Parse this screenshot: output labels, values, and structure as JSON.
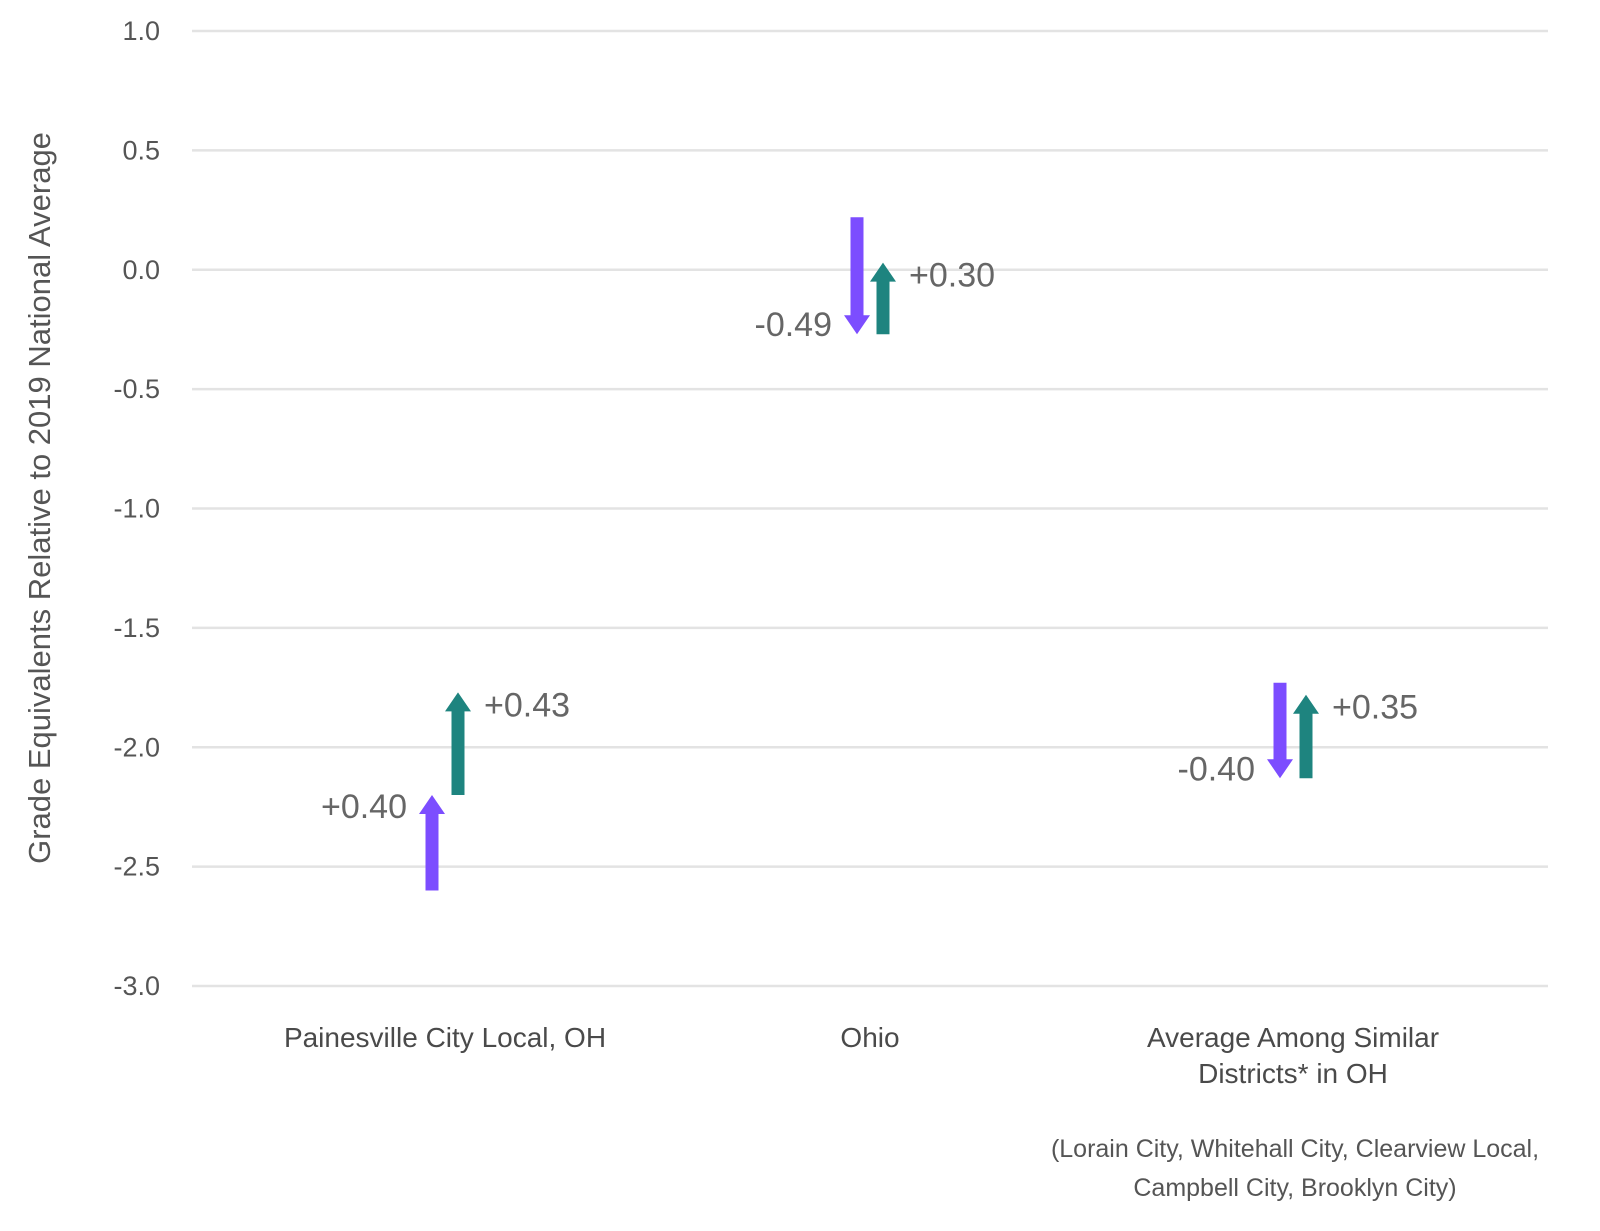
{
  "chart_data": {
    "type": "arrow",
    "ylabel": "Grade Equivalents Relative to 2019 National Average",
    "xlabel": "",
    "ylim": [
      -3.0,
      1.0
    ],
    "yticks": [
      "1.0",
      "0.5",
      "0.0",
      "-0.5",
      "-1.0",
      "-1.5",
      "-2.0",
      "-2.5",
      "-3.0"
    ],
    "grid": true,
    "colors": {
      "series_1": "#7c4dff",
      "series_2": "#1e847f"
    },
    "categories": [
      {
        "label_lines": [
          "Painesville City Local, OH"
        ],
        "note_lines": []
      },
      {
        "label_lines": [
          "Ohio"
        ],
        "note_lines": []
      },
      {
        "label_lines": [
          "Average Among Similar",
          "Districts* in OH"
        ],
        "note_lines": [
          "(Lorain City, Whitehall City, Clearview Local,",
          "Campbell City, Brooklyn City)"
        ]
      }
    ],
    "series": [
      {
        "color": "#7c4dff",
        "points": [
          {
            "start": -2.6,
            "end": -2.2,
            "label": "+0.40"
          },
          {
            "start": 0.22,
            "end": -0.27,
            "label": "-0.49"
          },
          {
            "start": -1.73,
            "end": -2.13,
            "label": "-0.40"
          }
        ]
      },
      {
        "color": "#1e847f",
        "points": [
          {
            "start": -2.2,
            "end": -1.77,
            "label": "+0.43"
          },
          {
            "start": -0.27,
            "end": 0.03,
            "label": "+0.30"
          },
          {
            "start": -2.13,
            "end": -1.78,
            "label": "+0.35"
          }
        ]
      }
    ]
  }
}
